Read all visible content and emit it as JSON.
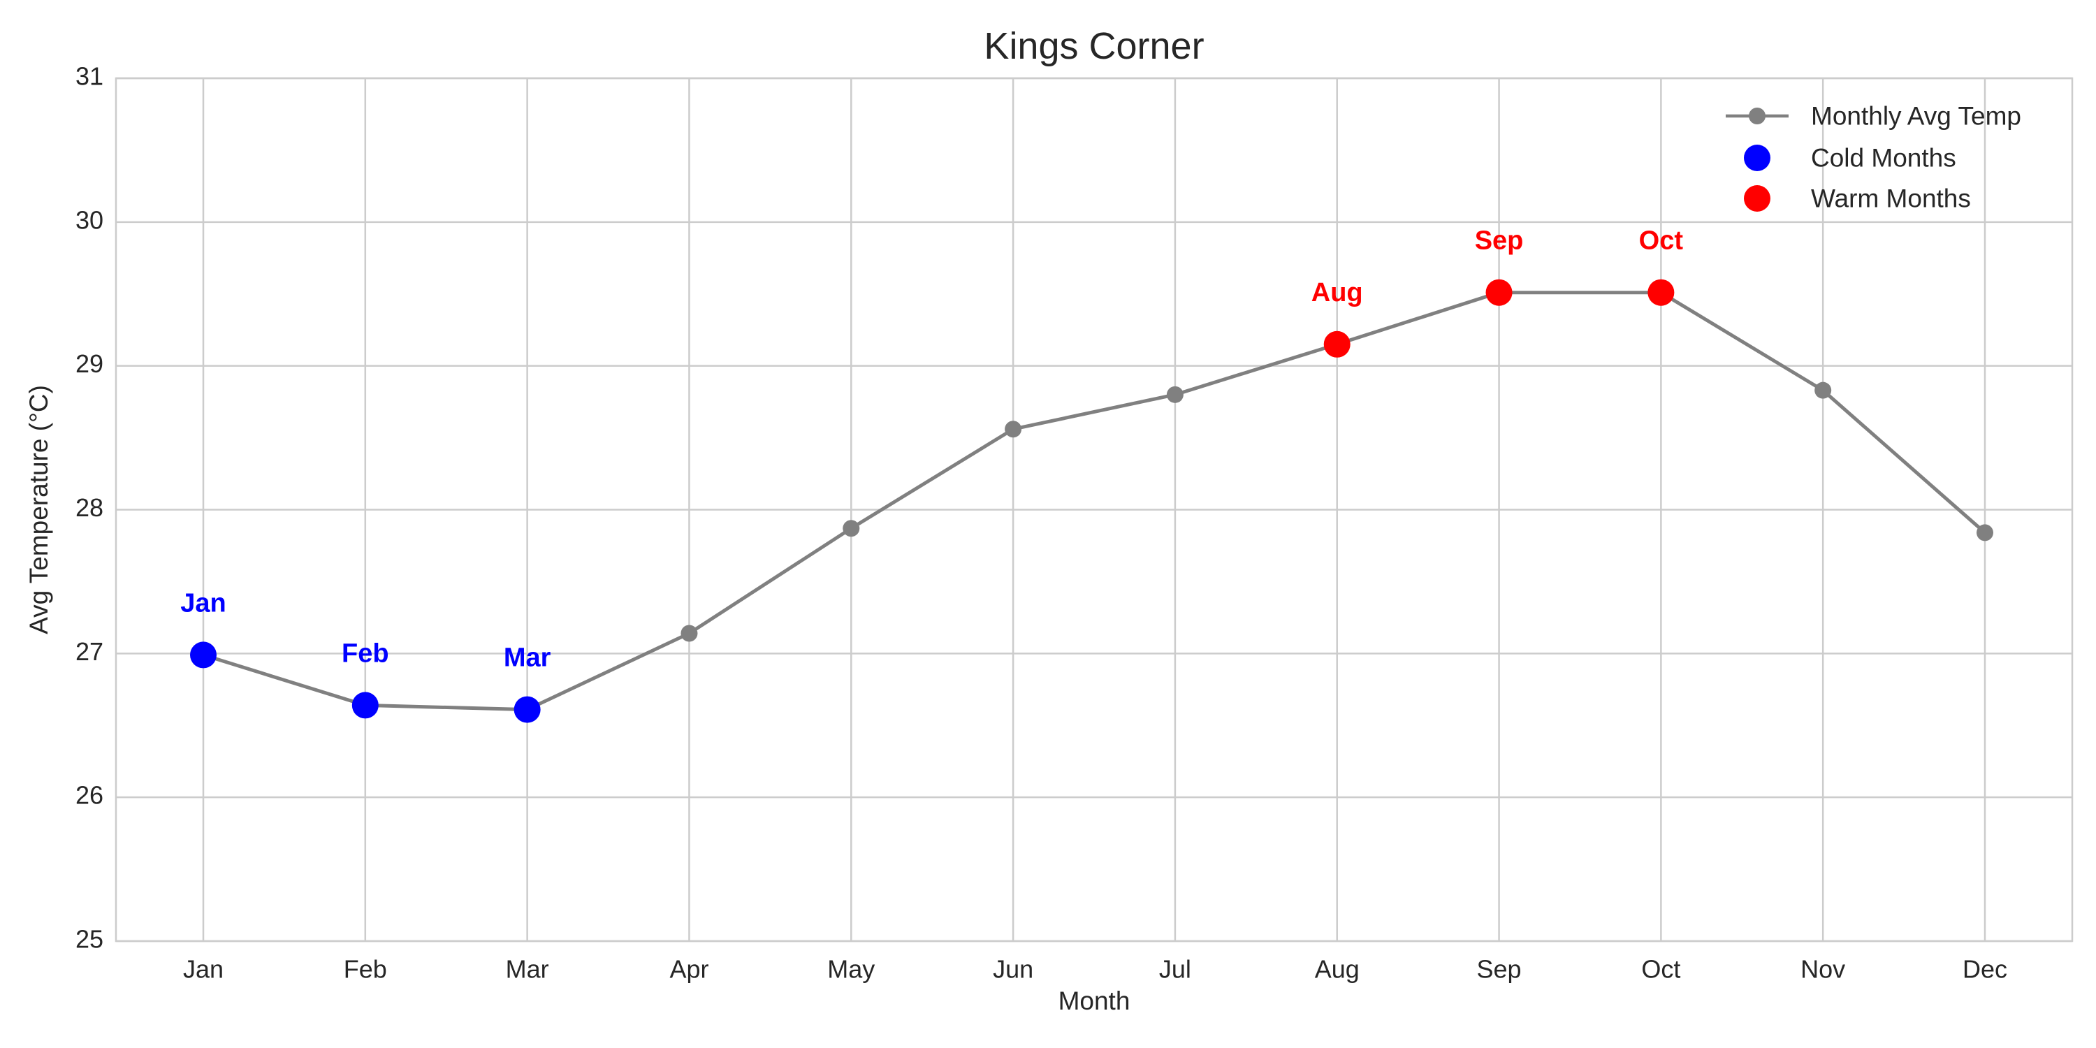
{
  "chart_data": {
    "type": "line",
    "title": "Kings Corner",
    "xlabel": "Month",
    "ylabel": "Avg Temperature (°C)",
    "categories": [
      "Jan",
      "Feb",
      "Mar",
      "Apr",
      "May",
      "Jun",
      "Jul",
      "Aug",
      "Sep",
      "Oct",
      "Nov",
      "Dec"
    ],
    "ylim": [
      25,
      31
    ],
    "yticks": [
      "25",
      "26",
      "27",
      "28",
      "29",
      "30",
      "31"
    ],
    "grid": true,
    "legend_position": "top-right",
    "series": [
      {
        "name": "Monthly Avg Temp",
        "kind": "line-with-markers",
        "color": "#808080",
        "values": [
          26.99,
          26.64,
          26.61,
          27.14,
          27.87,
          28.56,
          28.8,
          29.15,
          29.51,
          29.51,
          28.83,
          27.84
        ]
      },
      {
        "name": "Cold Months",
        "kind": "scatter",
        "color": "#0000ff",
        "x": [
          "Jan",
          "Feb",
          "Mar"
        ],
        "values": [
          26.99,
          26.64,
          26.61
        ]
      },
      {
        "name": "Warm Months",
        "kind": "scatter",
        "color": "#ff0000",
        "x": [
          "Aug",
          "Sep",
          "Oct"
        ],
        "values": [
          29.15,
          29.51,
          29.51
        ]
      }
    ],
    "annotations": [
      {
        "text": "Jan",
        "x": "Jan",
        "y": 26.99,
        "color": "#0000ff"
      },
      {
        "text": "Feb",
        "x": "Feb",
        "y": 26.64,
        "color": "#0000ff"
      },
      {
        "text": "Mar",
        "x": "Mar",
        "y": 26.61,
        "color": "#0000ff"
      },
      {
        "text": "Aug",
        "x": "Aug",
        "y": 29.15,
        "color": "#ff0000"
      },
      {
        "text": "Sep",
        "x": "Sep",
        "y": 29.51,
        "color": "#ff0000"
      },
      {
        "text": "Oct",
        "x": "Oct",
        "y": 29.51,
        "color": "#ff0000"
      }
    ]
  }
}
